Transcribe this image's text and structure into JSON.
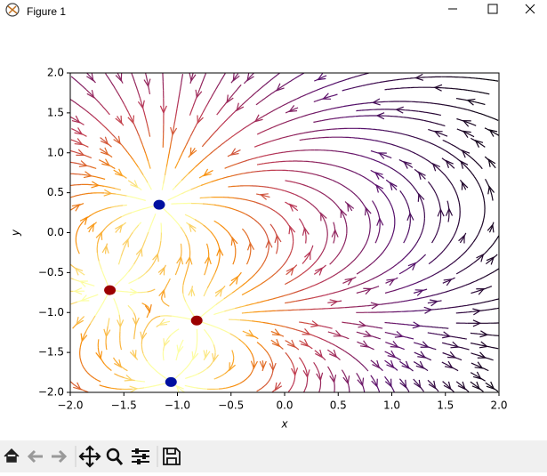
{
  "window_title": "Figure 1",
  "chart_data": {
    "type": "streamplot",
    "xlabel": "x",
    "ylabel": "y",
    "xlim": [
      -2,
      2
    ],
    "ylim": [
      -2,
      2
    ],
    "xticks": [
      {
        "value": -2,
        "label": "−2.0"
      },
      {
        "value": -1.5,
        "label": "−1.5"
      },
      {
        "value": -1,
        "label": "−1.0"
      },
      {
        "value": -0.5,
        "label": "−0.5"
      },
      {
        "value": 0,
        "label": "0.0"
      },
      {
        "value": 0.5,
        "label": "0.5"
      },
      {
        "value": 1,
        "label": "1.0"
      },
      {
        "value": 1.5,
        "label": "1.5"
      },
      {
        "value": 2,
        "label": "2.0"
      }
    ],
    "yticks": [
      {
        "value": -2,
        "label": "−2.0"
      },
      {
        "value": -1.5,
        "label": "−1.5"
      },
      {
        "value": -1,
        "label": "−1.0"
      },
      {
        "value": -0.5,
        "label": "−0.5"
      },
      {
        "value": 0,
        "label": "0.0"
      },
      {
        "value": 0.5,
        "label": "0.5"
      },
      {
        "value": 1,
        "label": "1.0"
      },
      {
        "value": 1.5,
        "label": "1.5"
      },
      {
        "value": 2,
        "label": "2.0"
      }
    ],
    "series": [
      {
        "color": "#9b0000",
        "x": [
          -1.63,
          -0.82
        ],
        "y": [
          -0.72,
          -1.1
        ]
      },
      {
        "color": "#0010a0",
        "x": [
          -1.17,
          -1.06
        ],
        "y": [
          0.35,
          -1.87
        ]
      }
    ]
  }
}
